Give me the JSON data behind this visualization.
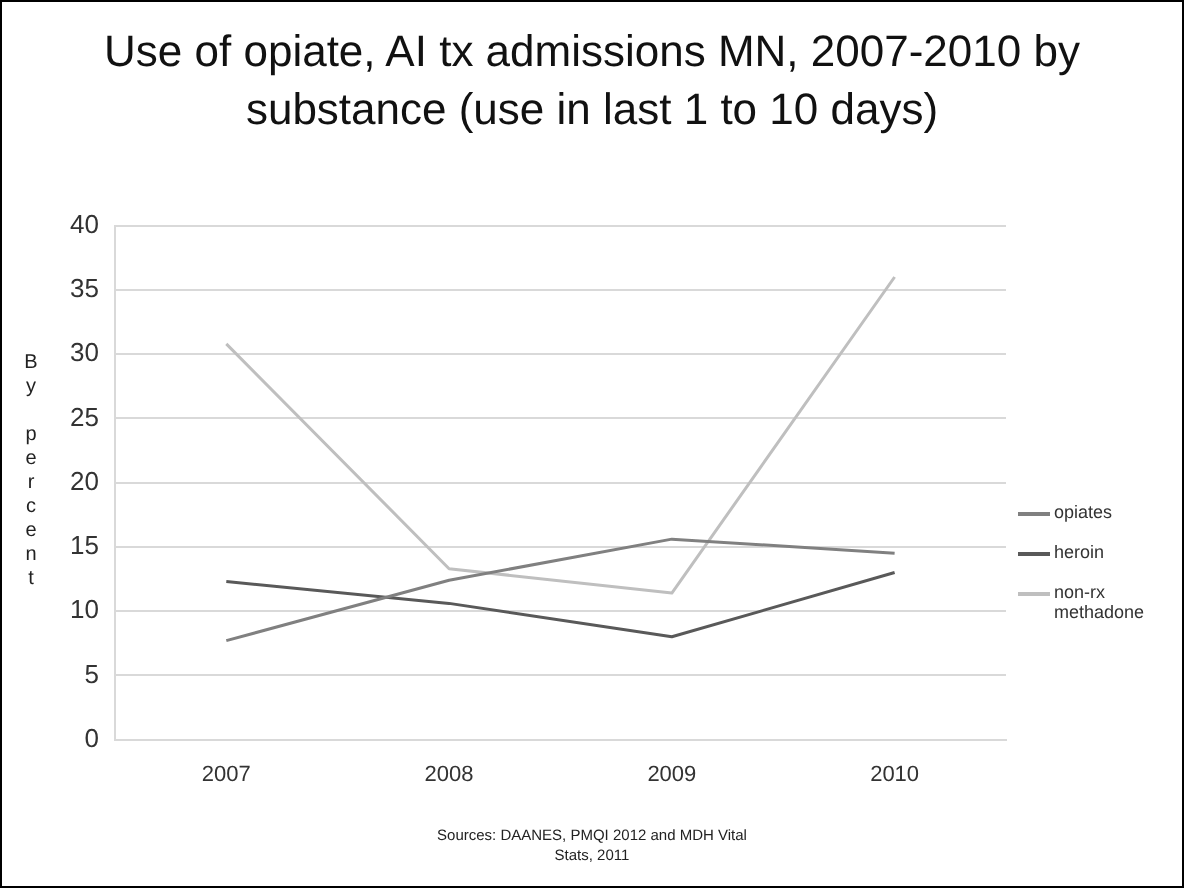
{
  "chart_data": {
    "type": "line",
    "title": "Use of opiate, AI tx admissions MN, 2007-2010 by substance (use in last 1 to 10 days)",
    "ylabel": "By percent",
    "categories": [
      "2007",
      "2008",
      "2009",
      "2010"
    ],
    "series": [
      {
        "name": "opiates",
        "color": "#808080",
        "values": [
          7.7,
          12.4,
          15.6,
          14.5
        ]
      },
      {
        "name": "heroin",
        "color": "#595959",
        "values": [
          12.3,
          10.6,
          8.0,
          13.0
        ]
      },
      {
        "name": "non-rx methadone",
        "color": "#bfbfbf",
        "values": [
          30.8,
          13.3,
          11.4,
          36.0
        ]
      }
    ],
    "ylim": [
      0,
      40
    ],
    "yticks": [
      0,
      5,
      10,
      15,
      20,
      25,
      30,
      35,
      40
    ],
    "grid": "y",
    "legend": "right",
    "marker": "none",
    "line_style": "solid",
    "annotations": [
      "Sources: DAANES, PMQI 2012 and MDH Vital Stats, 2011"
    ]
  }
}
